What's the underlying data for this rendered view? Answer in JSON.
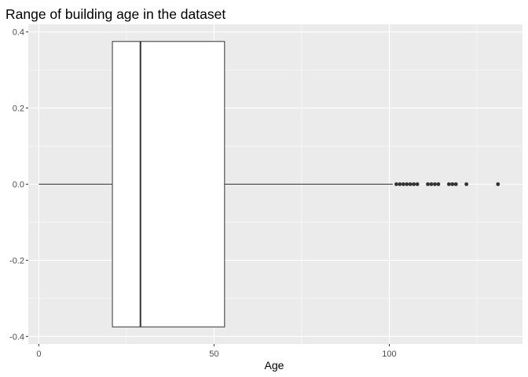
{
  "chart_data": {
    "type": "boxplot",
    "title": "Range of building age in the dataset",
    "xlabel": "Age",
    "ylabel": "",
    "xlim": [
      -3,
      138
    ],
    "ylim": [
      -0.42,
      0.42
    ],
    "x_ticks": [
      0,
      50,
      100
    ],
    "y_ticks": [
      -0.4,
      -0.2,
      0.0,
      0.2,
      0.4
    ],
    "y_tick_labels": [
      "-0.4",
      "-0.2",
      "0.0",
      "0.2",
      "0.4"
    ],
    "box": {
      "y_center": 0.0,
      "y_half_width": 0.375,
      "whisker_low": 0,
      "q1": 21,
      "median": 29,
      "q3": 53,
      "whisker_high": 101
    },
    "outliers": [
      102,
      103,
      104,
      105,
      106,
      107,
      108,
      111,
      112,
      113,
      114,
      117,
      118,
      119,
      122,
      131
    ],
    "background": "#ebebeb",
    "grid": true,
    "grid_color": "#ffffff"
  }
}
